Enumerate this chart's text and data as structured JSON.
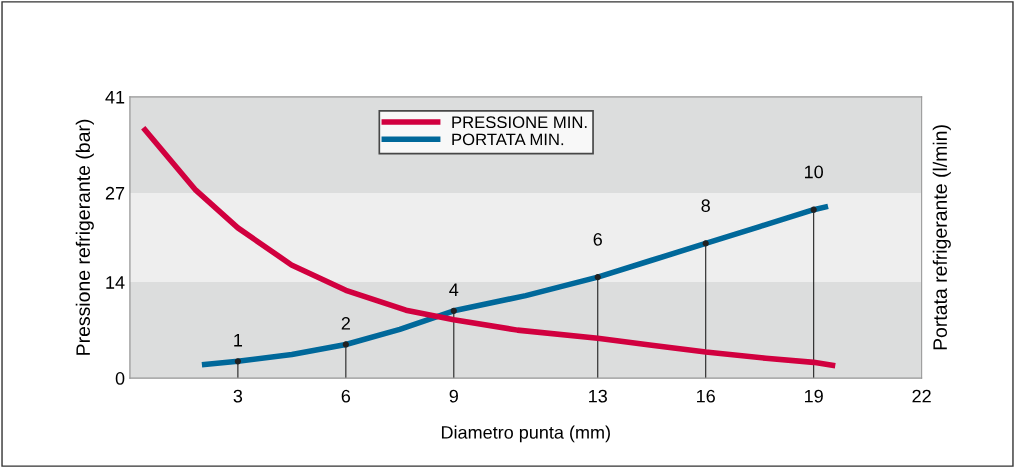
{
  "chart_data": {
    "type": "line",
    "xlabel": "Diametro punta (mm)",
    "ylabel": "Pressione refrigerante (bar)",
    "y2label": "Portata refrigerante (l/min)",
    "xlim": [
      0,
      22
    ],
    "xticks": [
      3,
      6,
      9,
      13,
      16,
      19,
      22
    ],
    "ylim": [
      0,
      41
    ],
    "yticks": [
      0,
      14,
      27,
      41
    ],
    "y2lim": [
      0,
      16.7
    ],
    "bands": [
      {
        "axis": "y",
        "from": 0,
        "to": 14,
        "color": "#dcdddd"
      },
      {
        "axis": "y",
        "from": 14,
        "to": 27,
        "color": "#eeeeee"
      },
      {
        "axis": "y",
        "from": 27,
        "to": 41,
        "color": "#dcdddd"
      }
    ],
    "legend": "top",
    "grid": false,
    "series": [
      {
        "name": "PRESSIONE MIN.",
        "color": "#d1003f",
        "x": [
          0.37,
          1.83,
          3,
          4.49,
          6,
          7.67,
          9,
          10.77,
          13,
          14.5,
          16,
          17.67,
          19,
          19.6
        ],
        "values": [
          36.5,
          27.4,
          21.9,
          16.5,
          12.8,
          9.9,
          8.5,
          7.0,
          5.8,
          4.8,
          3.8,
          2.9,
          2.3,
          1.8
        ]
      },
      {
        "name": "PORTATA MIN.",
        "color": "#00689a",
        "axis": "y2",
        "x": [
          2,
          3,
          4.5,
          6,
          7.5,
          9,
          11,
          13,
          14.5,
          16,
          17.5,
          19,
          19.4
        ],
        "values": [
          0.8,
          1,
          1.4,
          2,
          2.9,
          4,
          4.9,
          6,
          7,
          8,
          9,
          10,
          10.2
        ],
        "value_labels": [
          null,
          "1",
          null,
          "2",
          null,
          "4",
          null,
          "6",
          null,
          "8",
          null,
          "10",
          null
        ]
      },
      {
        "type": "lollipop",
        "color": "#222222",
        "axis": "y2",
        "marker": "circle",
        "x": [
          3,
          6,
          9,
          13,
          16,
          19
        ],
        "values": [
          1,
          2,
          4,
          6,
          8,
          10
        ]
      }
    ]
  }
}
